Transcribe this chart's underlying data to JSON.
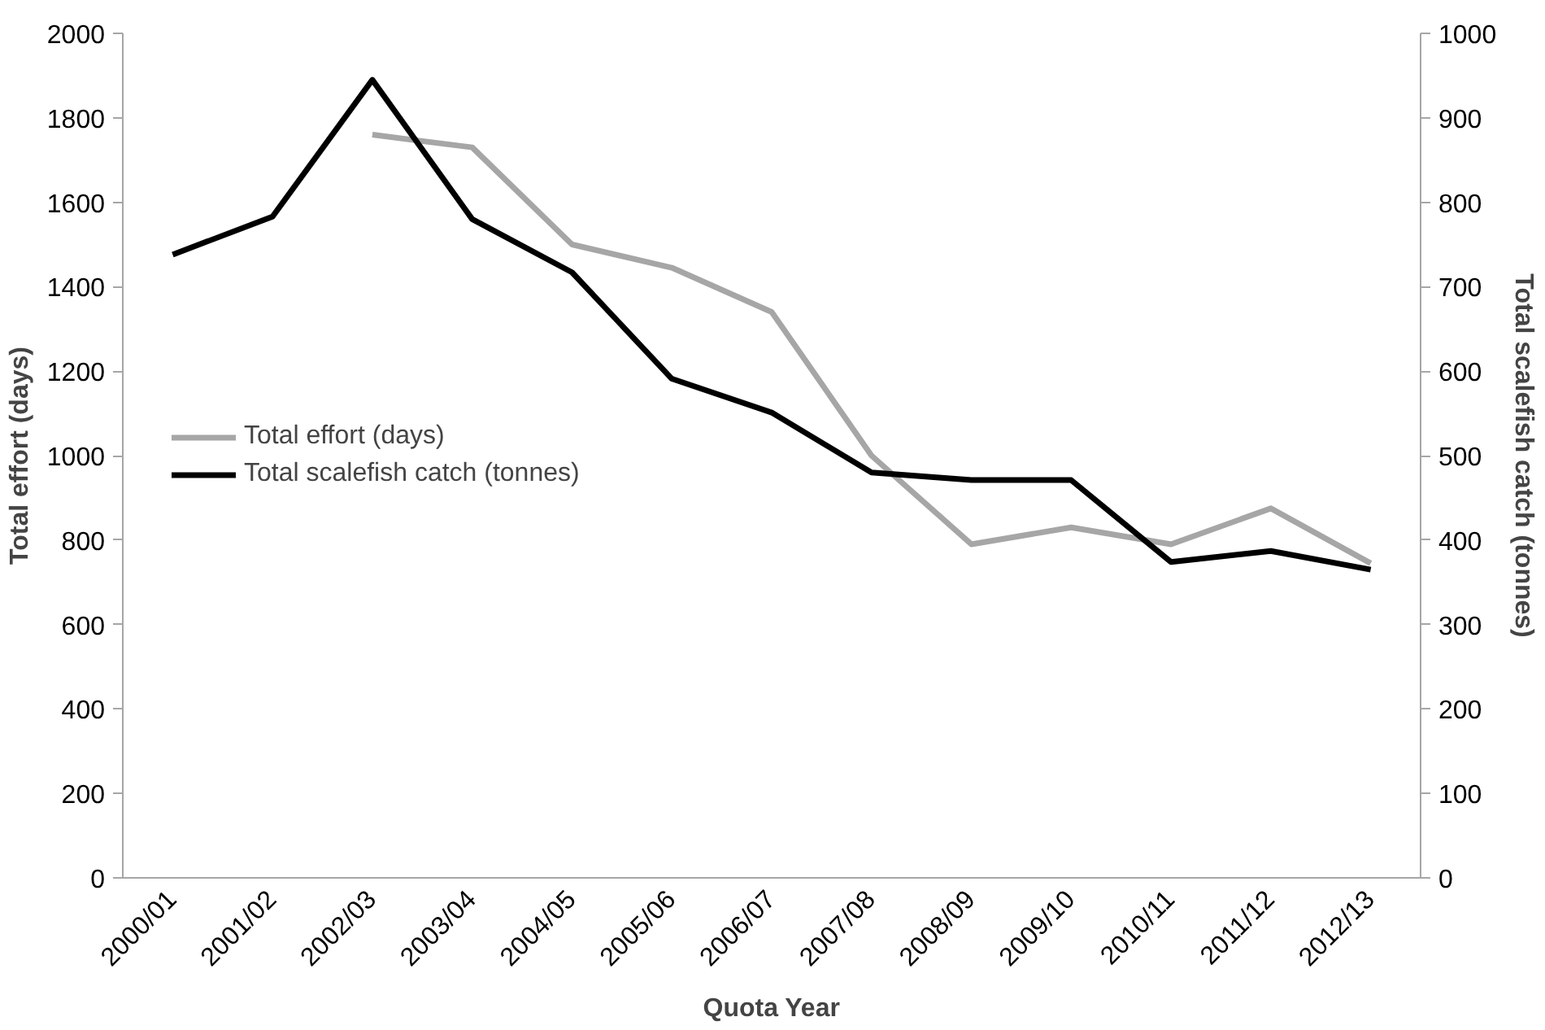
{
  "chart_data": {
    "type": "line",
    "categories": [
      "2000/01",
      "2001/02",
      "2002/03",
      "2003/04",
      "2004/05",
      "2005/06",
      "2006/07",
      "2007/08",
      "2008/09",
      "2009/10",
      "2010/11",
      "2011/12",
      "2012/13"
    ],
    "series": [
      {
        "name": "Total effort (days)",
        "color": "#a6a6a6",
        "values": [
          null,
          null,
          1760,
          1730,
          1500,
          1445,
          1340,
          1000,
          790,
          830,
          790,
          875,
          745
        ]
      },
      {
        "name": "Total scalefish catch (tonnes)",
        "color": "#000000",
        "axis": "y2",
        "values": [
          738,
          783,
          945,
          780,
          717,
          591,
          551,
          480,
          471,
          471,
          374,
          387,
          365
        ]
      }
    ],
    "xlabel": "Quota Year",
    "ylabel": "Total effort (days)",
    "y2label": "Total scalefish catch (tonnes)",
    "ylim": [
      0,
      2000
    ],
    "yticks": [
      0,
      200,
      400,
      600,
      800,
      1000,
      1200,
      1400,
      1600,
      1800,
      2000
    ],
    "y2lim": [
      0,
      1000
    ],
    "y2ticks": [
      0,
      100,
      200,
      300,
      400,
      500,
      600,
      700,
      800,
      900,
      1000
    ],
    "grid": false,
    "legend": "left",
    "marker": "none",
    "line_style": "solid"
  }
}
